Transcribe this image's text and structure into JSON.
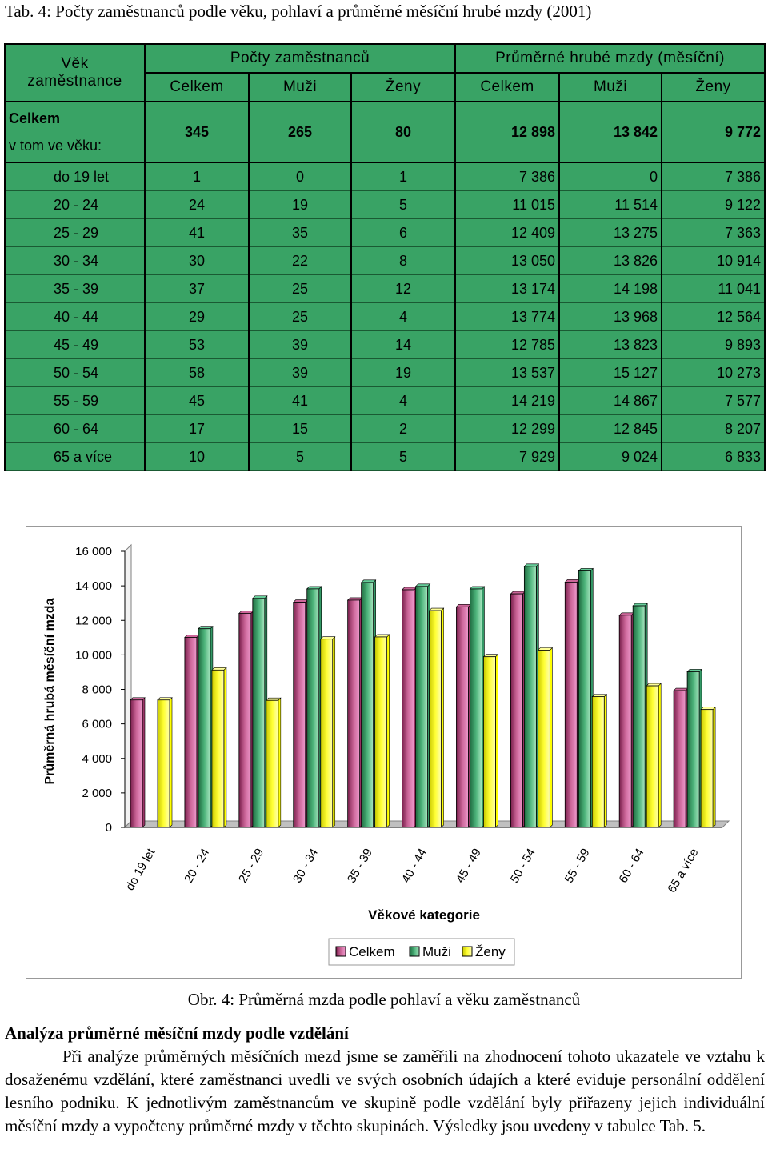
{
  "table": {
    "title": "Tab. 4: Počty zaměstnanců podle věku, pohlaví a průměrné měsíční hrubé mzdy (2001)",
    "header": {
      "age_col": [
        "Věk",
        "zaměstnance"
      ],
      "group_counts": "Počty zaměstnanců",
      "group_wages": "Průměrné hrubé mzdy (měsíční)",
      "sub": [
        "Celkem",
        "Muži",
        "Ženy",
        "Celkem",
        "Muži",
        "Ženy"
      ]
    },
    "total": {
      "label": "Celkem",
      "sublabel": "v tom ve věku:",
      "values": [
        "345",
        "265",
        "80",
        "12 898",
        "13 842",
        "9 772"
      ]
    },
    "rows": [
      {
        "age": "do 19 let",
        "values": [
          "1",
          "0",
          "1",
          "7 386",
          "0",
          "7 386"
        ]
      },
      {
        "age": "20 - 24",
        "values": [
          "24",
          "19",
          "5",
          "11 015",
          "11 514",
          "9 122"
        ]
      },
      {
        "age": "25 - 29",
        "values": [
          "41",
          "35",
          "6",
          "12 409",
          "13 275",
          "7 363"
        ]
      },
      {
        "age": "30 - 34",
        "values": [
          "30",
          "22",
          "8",
          "13 050",
          "13 826",
          "10 914"
        ]
      },
      {
        "age": "35 - 39",
        "values": [
          "37",
          "25",
          "12",
          "13 174",
          "14 198",
          "11 041"
        ]
      },
      {
        "age": "40 - 44",
        "values": [
          "29",
          "25",
          "4",
          "13 774",
          "13 968",
          "12 564"
        ]
      },
      {
        "age": "45 - 49",
        "values": [
          "53",
          "39",
          "14",
          "12 785",
          "13 823",
          "9 893"
        ]
      },
      {
        "age": "50 - 54",
        "values": [
          "58",
          "39",
          "19",
          "13 537",
          "15 127",
          "10 273"
        ]
      },
      {
        "age": "55 - 59",
        "values": [
          "45",
          "41",
          "4",
          "14 219",
          "14 867",
          "7 577"
        ]
      },
      {
        "age": "60 - 64",
        "values": [
          "17",
          "15",
          "2",
          "12 299",
          "12 845",
          "8 207"
        ]
      },
      {
        "age": "65 a více",
        "values": [
          "10",
          "5",
          "5",
          "7 929",
          "9 024",
          "6 833"
        ]
      }
    ]
  },
  "chart_data": {
    "type": "bar",
    "categories": [
      "do 19 let",
      "20 - 24",
      "25 - 29",
      "30 - 34",
      "35 - 39",
      "40 - 44",
      "45 - 49",
      "50 - 54",
      "55 - 59",
      "60 - 64",
      "65 a více"
    ],
    "series": [
      {
        "name": "Celkem",
        "color": "#993366",
        "values": [
          7386,
          11015,
          12409,
          13050,
          13174,
          13774,
          12785,
          13537,
          14219,
          12299,
          7929
        ]
      },
      {
        "name": "Muži",
        "color": "#339966",
        "values": [
          0,
          11514,
          13275,
          13826,
          14198,
          13968,
          13823,
          15127,
          14867,
          12845,
          9024
        ]
      },
      {
        "name": "Ženy",
        "color": "#ffff00",
        "values": [
          7386,
          9122,
          7363,
          10914,
          11041,
          12564,
          9893,
          10273,
          7577,
          8207,
          6833
        ]
      }
    ],
    "yticks": [
      "0",
      "2 000",
      "4 000",
      "6 000",
      "8 000",
      "10 000",
      "12 000",
      "14 000",
      "16 000"
    ],
    "ylim": [
      0,
      16000
    ],
    "xlabel": "Věkové kategorie",
    "ylabel": "Průměrná hrubá měsíční mzda",
    "legend": "bottom",
    "chart_style": "3d-bar"
  },
  "figure_caption": "Obr. 4: Průměrná mzda podle pohlaví a věku zaměstnanců",
  "section_heading": "Analýza průměrné měsíční mzdy podle vzdělání",
  "paragraph": "Při analýze průměrných měsíčních mezd jsme se zaměřili na zhodnocení tohoto ukazatele ve vztahu k dosaženému vzdělání, které zaměstnanci uvedli ve svých osobních údajích a které eviduje personální oddělení lesního podniku. K jednotlivým zaměstnancům ve skupině podle vzdělání byly přiřazeny jejich individuální měsíční mzdy a vypočteny průměrné mzdy v těchto skupinách. Výsledky jsou uvedeny v tabulce Tab. 5."
}
